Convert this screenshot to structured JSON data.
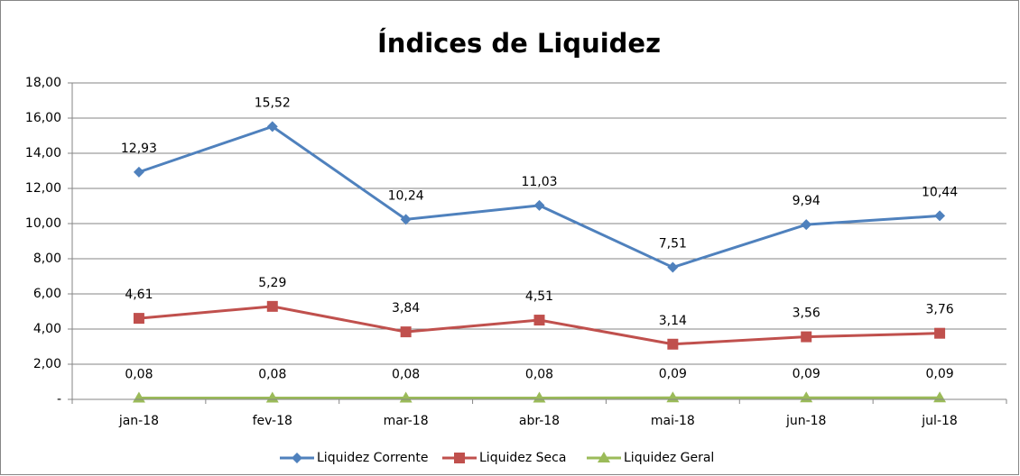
{
  "chart_data": {
    "type": "line",
    "title": "Índices de Liquidez",
    "categories": [
      "jan-18",
      "fev-18",
      "mar-18",
      "abr-18",
      "mai-18",
      "jun-18",
      "jul-18"
    ],
    "series": [
      {
        "name": "Liquidez Corrente",
        "color": "#4f81bd",
        "marker": "diamond",
        "values": [
          12.93,
          15.52,
          10.24,
          11.03,
          7.51,
          9.94,
          10.44
        ],
        "value_labels": [
          "12,93",
          "15,52",
          "10,24",
          "11,03",
          "7,51",
          "9,94",
          "10,44"
        ]
      },
      {
        "name": "Liquidez Seca",
        "color": "#c0504d",
        "marker": "square",
        "values": [
          4.61,
          5.29,
          3.84,
          4.51,
          3.14,
          3.56,
          3.76
        ],
        "value_labels": [
          "4,61",
          "5,29",
          "3,84",
          "4,51",
          "3,14",
          "3,56",
          "3,76"
        ]
      },
      {
        "name": "Liquidez Geral",
        "color": "#9bbb59",
        "marker": "triangle",
        "values": [
          0.08,
          0.08,
          0.08,
          0.08,
          0.09,
          0.09,
          0.09
        ],
        "value_labels": [
          "0,08",
          "0,08",
          "0,08",
          "0,08",
          "0,09",
          "0,09",
          "0,09"
        ]
      }
    ],
    "ylim": [
      0,
      18
    ],
    "yticks": [
      {
        "value": 0,
        "label": "-"
      },
      {
        "value": 2,
        "label": "2,00"
      },
      {
        "value": 4,
        "label": "4,00"
      },
      {
        "value": 6,
        "label": "6,00"
      },
      {
        "value": 8,
        "label": "8,00"
      },
      {
        "value": 10,
        "label": "10,00"
      },
      {
        "value": 12,
        "label": "12,00"
      },
      {
        "value": 14,
        "label": "14,00"
      },
      {
        "value": 16,
        "label": "16,00"
      },
      {
        "value": 18,
        "label": "18,00"
      }
    ],
    "grid": true,
    "legend": "bottom"
  }
}
